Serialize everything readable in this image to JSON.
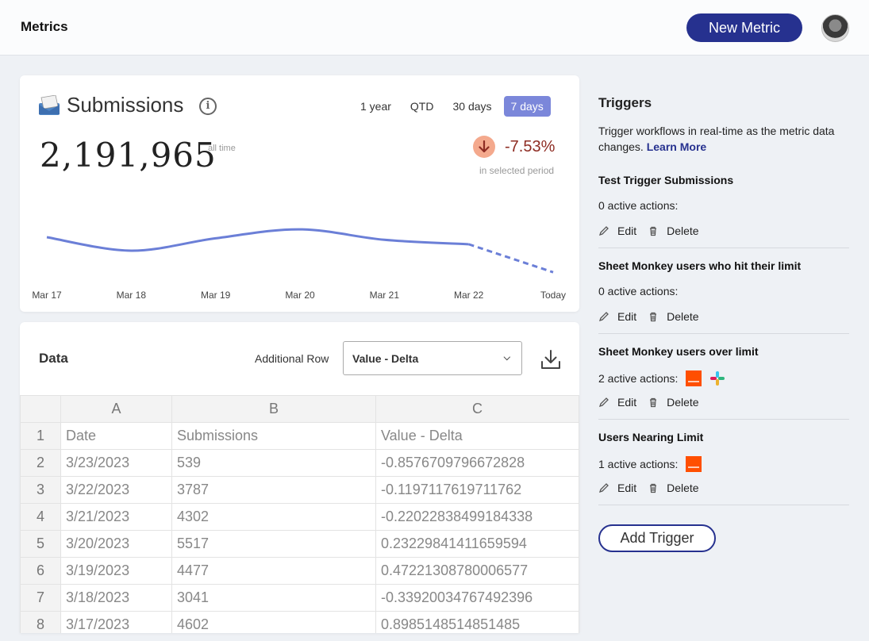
{
  "header": {
    "title": "Metrics",
    "new_metric_label": "New Metric"
  },
  "metric": {
    "name": "Submissions",
    "icon": "inbox-tray-icon",
    "value": "2,191,965",
    "value_caption": "all time",
    "delta": "-7.53%",
    "delta_caption": "in selected period",
    "ranges": [
      "1 year",
      "QTD",
      "30 days",
      "7 days"
    ],
    "active_range": "7 days",
    "colors": {
      "accent": "#26318f",
      "range_active": "#7b87da",
      "line": "#6b7fd7",
      "delta_bg": "#f4a98d",
      "delta_text": "#8e2c23"
    }
  },
  "chart_data": {
    "type": "line",
    "categories": [
      "Mar 17",
      "Mar 18",
      "Mar 19",
      "Mar 20",
      "Mar 21",
      "Mar 22",
      "Today"
    ],
    "series": [
      {
        "values": [
          4602,
          3041,
          4477,
          5517,
          4302,
          3787,
          539
        ]
      }
    ],
    "projected_from_index": 5,
    "grid": false
  },
  "data_section": {
    "title": "Data",
    "additional_row_label": "Additional Row",
    "additional_row_value": "Value - Delta",
    "columns": [
      "A",
      "B",
      "C"
    ],
    "rows": [
      [
        "1",
        "Date",
        "Submissions",
        "Value - Delta"
      ],
      [
        "2",
        "3/23/2023",
        "539",
        "-0.8576709796672828"
      ],
      [
        "3",
        "3/22/2023",
        "3787",
        "-0.1197117619711762"
      ],
      [
        "4",
        "3/21/2023",
        "4302",
        "-0.22022838499184338"
      ],
      [
        "5",
        "3/20/2023",
        "5517",
        "0.23229841411659594"
      ],
      [
        "6",
        "3/19/2023",
        "4477",
        "0.47221308780006577"
      ],
      [
        "7",
        "3/18/2023",
        "3041",
        "-0.33920034767492396"
      ],
      [
        "8",
        "3/17/2023",
        "4602",
        "0.8985148514851485"
      ]
    ]
  },
  "triggers": {
    "title": "Triggers",
    "description": "Trigger workflows in real-time as the metric data changes.",
    "learn_more": "Learn More",
    "edit_label": "Edit",
    "delete_label": "Delete",
    "add_label": "Add Trigger",
    "items": [
      {
        "name": "Test Trigger Submissions",
        "actions_text": "0 active actions:",
        "integrations": []
      },
      {
        "name": "Sheet Monkey users who hit their limit",
        "actions_text": "0 active actions:",
        "integrations": []
      },
      {
        "name": "Sheet Monkey users over limit",
        "actions_text": "2 active actions:",
        "integrations": [
          "zapier-icon",
          "slack-icon"
        ]
      },
      {
        "name": "Users Nearing Limit",
        "actions_text": "1 active actions:",
        "integrations": [
          "zapier-icon"
        ]
      }
    ]
  }
}
